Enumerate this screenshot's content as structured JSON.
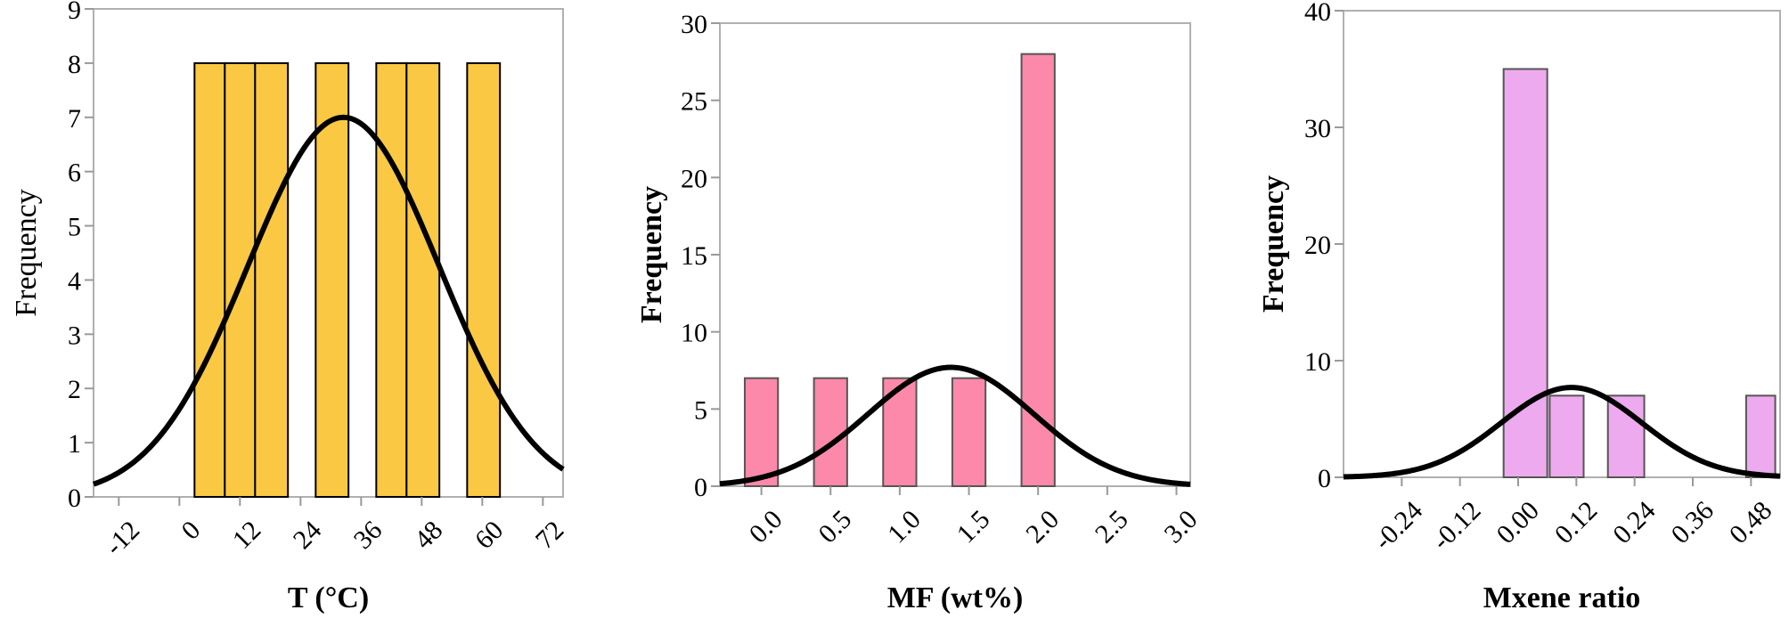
{
  "chart_data": [
    {
      "type": "bar",
      "subtype": "histogram",
      "xlabel": "T (°C)",
      "ylabel": "Frequency",
      "xlim": [
        -17,
        76
      ],
      "ylim": [
        0,
        9
      ],
      "xticks": [
        -12,
        0,
        12,
        24,
        36,
        48,
        60,
        72
      ],
      "xtick_labels": [
        "-12",
        "0",
        "12",
        "24",
        "36",
        "48",
        "60",
        "72"
      ],
      "yticks": [
        0,
        1,
        2,
        3,
        4,
        5,
        6,
        7,
        8,
        9
      ],
      "ytick_labels": [
        "0",
        "1",
        "2",
        "3",
        "4",
        "5",
        "6",
        "7",
        "8",
        "9"
      ],
      "bars": [
        {
          "x0": 3,
          "x1": 9,
          "value": 8
        },
        {
          "x0": 9,
          "x1": 15,
          "value": 8
        },
        {
          "x0": 15,
          "x1": 21.5,
          "value": 8
        },
        {
          "x0": 27,
          "x1": 33.5,
          "value": 8
        },
        {
          "x0": 39,
          "x1": 45,
          "value": 8
        },
        {
          "x0": 45,
          "x1": 51.5,
          "value": 8
        },
        {
          "x0": 57,
          "x1": 63.5,
          "value": 8
        }
      ],
      "fit_curve": {
        "type": "normal",
        "mean": 32.5,
        "sd": 19,
        "peak": 7.0
      },
      "bar_color": "#fbc843",
      "bar_stroke": "#000000",
      "grid": false,
      "ylabel_bold": false
    },
    {
      "type": "bar",
      "subtype": "histogram",
      "xlabel": "MF (wt%)",
      "ylabel": "Frequency",
      "xlim": [
        -0.3,
        3.1
      ],
      "ylim": [
        0,
        30
      ],
      "xticks": [
        0.0,
        0.5,
        1.0,
        1.5,
        2.0,
        2.5,
        3.0
      ],
      "xtick_labels": [
        "0.0",
        "0.5",
        "1.0",
        "1.5",
        "2.0",
        "2.5",
        "3.0"
      ],
      "yticks": [
        0,
        5,
        10,
        15,
        20,
        25,
        30
      ],
      "ytick_labels": [
        "0",
        "5",
        "10",
        "15",
        "20",
        "25",
        "30"
      ],
      "bars": [
        {
          "x0": -0.12,
          "x1": 0.12,
          "value": 7
        },
        {
          "x0": 0.38,
          "x1": 0.62,
          "value": 7
        },
        {
          "x0": 0.88,
          "x1": 1.12,
          "value": 7
        },
        {
          "x0": 1.38,
          "x1": 1.62,
          "value": 7
        },
        {
          "x0": 1.88,
          "x1": 2.12,
          "value": 28
        }
      ],
      "fit_curve": {
        "type": "normal",
        "mean": 1.37,
        "sd": 0.6,
        "peak": 7.7
      },
      "bar_color": "#fc89aa",
      "bar_stroke": "#555555",
      "grid": false,
      "ylabel_bold": true
    },
    {
      "type": "bar",
      "subtype": "histogram",
      "xlabel": "Mxene ratio",
      "ylabel": "Frequency",
      "xlim": [
        -0.36,
        0.54
      ],
      "ylim": [
        0,
        40
      ],
      "xticks": [
        -0.24,
        -0.12,
        0.0,
        0.12,
        0.24,
        0.36,
        0.48
      ],
      "xtick_labels": [
        "-0.24",
        "-0.12",
        "0.00",
        "0.12",
        "0.24",
        "0.36",
        "0.48"
      ],
      "yticks": [
        0,
        10,
        20,
        30,
        40
      ],
      "ytick_labels": [
        "0",
        "10",
        "20",
        "30",
        "40"
      ],
      "bars": [
        {
          "x0": -0.03,
          "x1": 0.06,
          "value": 35
        },
        {
          "x0": 0.065,
          "x1": 0.135,
          "value": 7
        },
        {
          "x0": 0.185,
          "x1": 0.26,
          "value": 7
        },
        {
          "x0": 0.47,
          "x1": 0.53,
          "value": 7
        }
      ],
      "fit_curve": {
        "type": "normal",
        "mean": 0.11,
        "sd": 0.145,
        "peak": 7.7
      },
      "bar_color": "#eeaaee",
      "bar_stroke": "#555555",
      "grid": false,
      "ylabel_bold": true
    }
  ]
}
